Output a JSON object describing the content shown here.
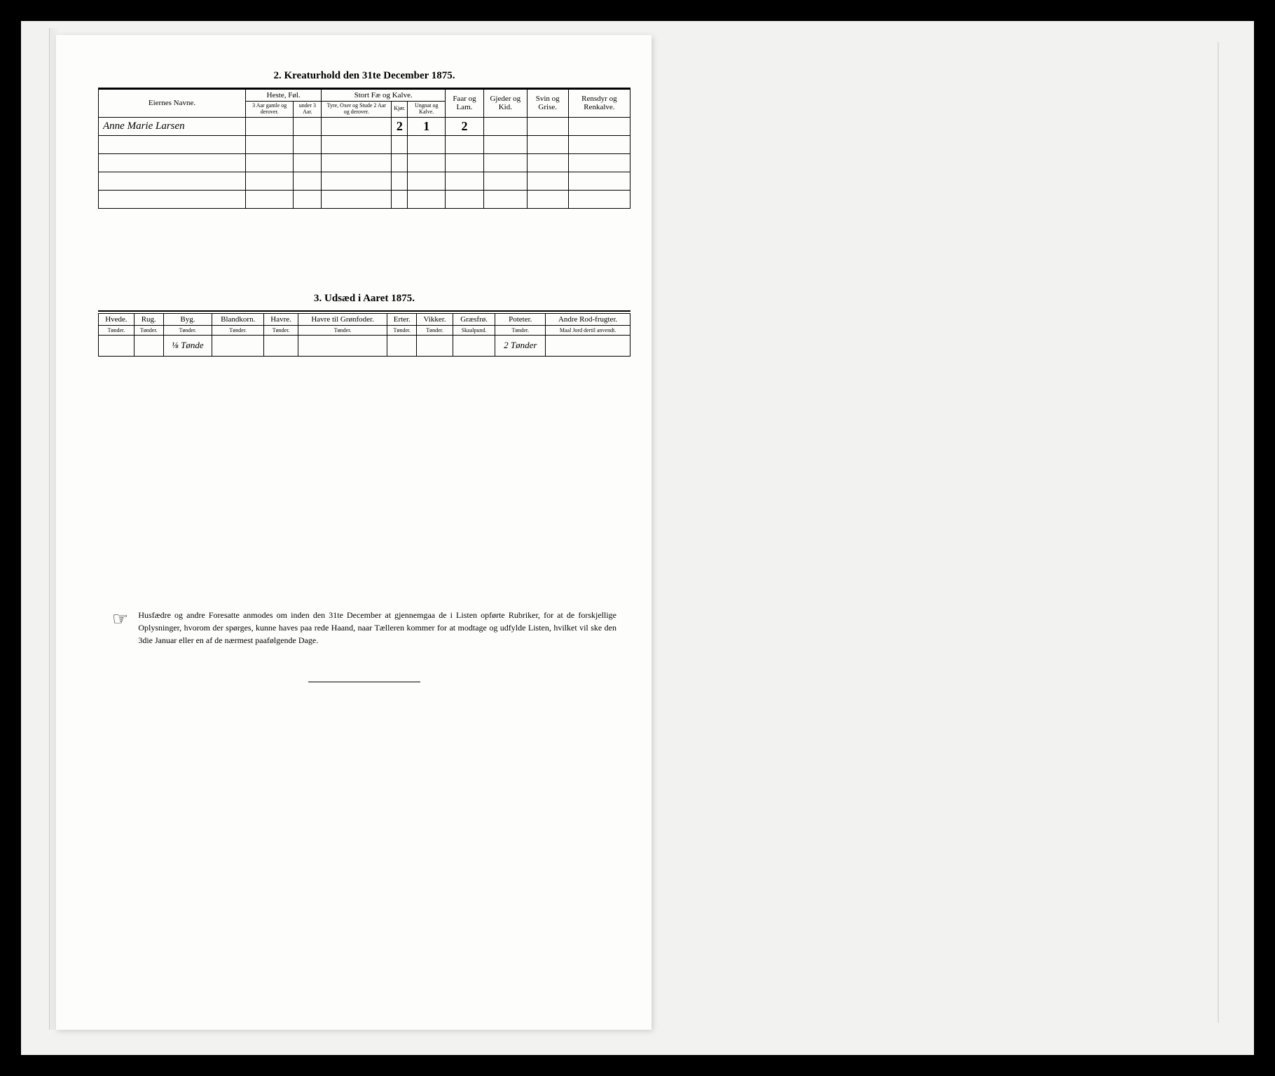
{
  "section2": {
    "title": "2.  Kreaturhold den 31te December 1875.",
    "headers": {
      "name": "Eiernes Navne.",
      "heste_group": "Heste, Føl.",
      "heste_sub1": "3 Aar gamle og derover.",
      "heste_sub2": "under 3 Aar.",
      "stort_group": "Stort Fæ og Kalve.",
      "stort_sub1": "Tyre, Oxer og Stude 2 Aar og derover.",
      "stort_sub2": "Kjør.",
      "stort_sub3": "Ungnat og Kalve.",
      "faar": "Faar og Lam.",
      "gjeder": "Gjeder og Kid.",
      "svin": "Svin og Grise.",
      "rensdyr": "Rensdyr og Renkalve."
    },
    "rows": [
      {
        "name": "Anne Marie Larsen",
        "h1": "",
        "h2": "",
        "s1": "",
        "s2": "2",
        "s3": "1",
        "faar": "2",
        "gjeder": "",
        "svin": "",
        "ren": ""
      },
      {
        "name": "",
        "h1": "",
        "h2": "",
        "s1": "",
        "s2": "",
        "s3": "",
        "faar": "",
        "gjeder": "",
        "svin": "",
        "ren": ""
      },
      {
        "name": "",
        "h1": "",
        "h2": "",
        "s1": "",
        "s2": "",
        "s3": "",
        "faar": "",
        "gjeder": "",
        "svin": "",
        "ren": ""
      },
      {
        "name": "",
        "h1": "",
        "h2": "",
        "s1": "",
        "s2": "",
        "s3": "",
        "faar": "",
        "gjeder": "",
        "svin": "",
        "ren": ""
      },
      {
        "name": "",
        "h1": "",
        "h2": "",
        "s1": "",
        "s2": "",
        "s3": "",
        "faar": "",
        "gjeder": "",
        "svin": "",
        "ren": ""
      }
    ]
  },
  "section3": {
    "title": "3.  Udsæd i Aaret 1875.",
    "columns": [
      {
        "label": "Hvede.",
        "unit": "Tønder."
      },
      {
        "label": "Rug.",
        "unit": "Tønder."
      },
      {
        "label": "Byg.",
        "unit": "Tønder."
      },
      {
        "label": "Blandkorn.",
        "unit": "Tønder."
      },
      {
        "label": "Havre.",
        "unit": "Tønder."
      },
      {
        "label": "Havre til Grønfoder.",
        "unit": "Tønder."
      },
      {
        "label": "Erter.",
        "unit": "Tønder."
      },
      {
        "label": "Vikker.",
        "unit": "Tønder."
      },
      {
        "label": "Græsfrø.",
        "unit": "Skaalpund."
      },
      {
        "label": "Poteter.",
        "unit": "Tønder."
      },
      {
        "label": "Andre Rod-frugter.",
        "unit": "Maal Jord dertil anvendt."
      }
    ],
    "row": [
      "",
      "",
      "⅛ Tønde",
      "",
      "",
      "",
      "",
      "",
      "",
      "2 Tønder",
      ""
    ]
  },
  "footnote": {
    "icon": "☞",
    "text": "Husfædre og andre Foresatte anmodes om inden den 31te December at gjennemgaa de i Listen opførte Rubriker, for at de forskjellige Oplysninger, hvorom der spørges, kunne haves paa rede Haand, naar Tælleren kommer for at modtage og udfylde Listen, hvilket vil ske den 3die Januar eller en af de nærmest paafølgende Dage."
  },
  "colors": {
    "page_bg": "#fdfdfb",
    "scan_bg": "#f2f2f0",
    "border": "#000000"
  }
}
